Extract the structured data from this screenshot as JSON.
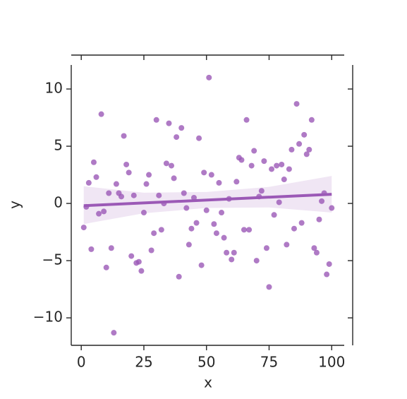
{
  "chart_data": {
    "type": "scatter",
    "xlabel": "x",
    "ylabel": "y",
    "color": "#9b59b6",
    "xlim": [
      -4,
      105
    ],
    "ylim": [
      -12.4,
      12.1
    ],
    "xticks": [
      0,
      25,
      50,
      75,
      100
    ],
    "yticks": [
      {
        "value": -10,
        "label": "−10"
      },
      {
        "value": -5,
        "label": "−5"
      },
      0,
      5,
      10
    ],
    "x": [
      1,
      2,
      3,
      4,
      5,
      6,
      7,
      8,
      9,
      10,
      11,
      12,
      13,
      14,
      15,
      16,
      17,
      18,
      19,
      20,
      21,
      22,
      23,
      24,
      25,
      26,
      27,
      28,
      29,
      30,
      31,
      32,
      33,
      34,
      35,
      36,
      37,
      38,
      39,
      40,
      41,
      42,
      43,
      44,
      45,
      46,
      47,
      48,
      49,
      50,
      51,
      52,
      53,
      54,
      55,
      56,
      57,
      58,
      59,
      60,
      61,
      62,
      63,
      64,
      65,
      66,
      67,
      68,
      69,
      70,
      71,
      72,
      73,
      74,
      75,
      76,
      77,
      78,
      79,
      80,
      81,
      82,
      83,
      84,
      85,
      86,
      87,
      88,
      89,
      90,
      91,
      92,
      93,
      94,
      95,
      96,
      97,
      98,
      99,
      100
    ],
    "values": [
      -2.1,
      -0.3,
      1.8,
      -4.0,
      3.6,
      2.3,
      -0.9,
      7.8,
      -0.7,
      -5.6,
      0.9,
      -3.9,
      -11.3,
      1.7,
      0.9,
      0.6,
      5.9,
      3.4,
      2.7,
      -4.6,
      0.7,
      -5.2,
      -5.1,
      -5.9,
      -0.8,
      1.7,
      2.5,
      -4.1,
      -2.6,
      7.3,
      0.7,
      -2.3,
      0.0,
      3.5,
      7.0,
      3.3,
      2.2,
      5.8,
      -6.4,
      6.6,
      0.9,
      -0.4,
      -3.6,
      -2.2,
      0.5,
      -1.7,
      5.7,
      -5.4,
      2.7,
      -0.6,
      11.0,
      2.5,
      -1.8,
      -2.6,
      1.8,
      -0.8,
      -3.0,
      -4.3,
      0.4,
      -4.9,
      -4.3,
      1.9,
      4.0,
      3.8,
      -2.3,
      7.3,
      -2.3,
      3.3,
      4.6,
      -5.0,
      0.6,
      1.1,
      3.7,
      -3.9,
      -7.3,
      3.0,
      -1.0,
      3.3,
      0.1,
      3.4,
      2.1,
      -3.6,
      3.0,
      4.7,
      -2.2,
      8.7,
      5.2,
      -1.7,
      6.0,
      4.3,
      4.7,
      7.3,
      -3.9,
      -4.3,
      -1.4,
      0.2,
      0.9,
      -6.2,
      -5.3,
      -0.4
    ],
    "regression": {
      "x": [
        1,
        100
      ],
      "values": [
        -0.2,
        0.8
      ]
    },
    "ci": {
      "x": [
        1,
        25,
        50,
        75,
        100
      ],
      "lower": [
        -1.8,
        -0.86,
        -0.4,
        -0.35,
        -0.8
      ],
      "upper": [
        1.5,
        0.94,
        1.0,
        1.45,
        2.4
      ]
    }
  }
}
